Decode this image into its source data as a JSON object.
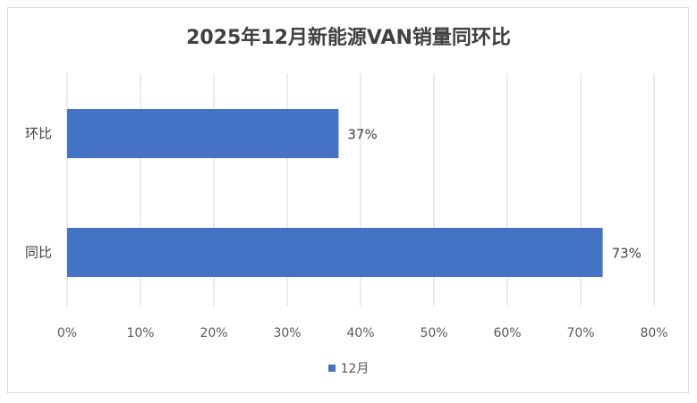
{
  "chart_data": {
    "type": "bar",
    "orientation": "horizontal",
    "title": "2025年12月新能源VAN销量同环比",
    "categories": [
      "环比",
      "同比"
    ],
    "series": [
      {
        "name": "12月",
        "values": [
          37,
          73
        ],
        "color": "#4472C4"
      }
    ],
    "data_labels": [
      "37%",
      "73%"
    ],
    "xlim": [
      0,
      80
    ],
    "xticks": [
      "0%",
      "10%",
      "20%",
      "30%",
      "40%",
      "50%",
      "60%",
      "70%",
      "80%"
    ],
    "grid": true,
    "legend": "bottom"
  }
}
